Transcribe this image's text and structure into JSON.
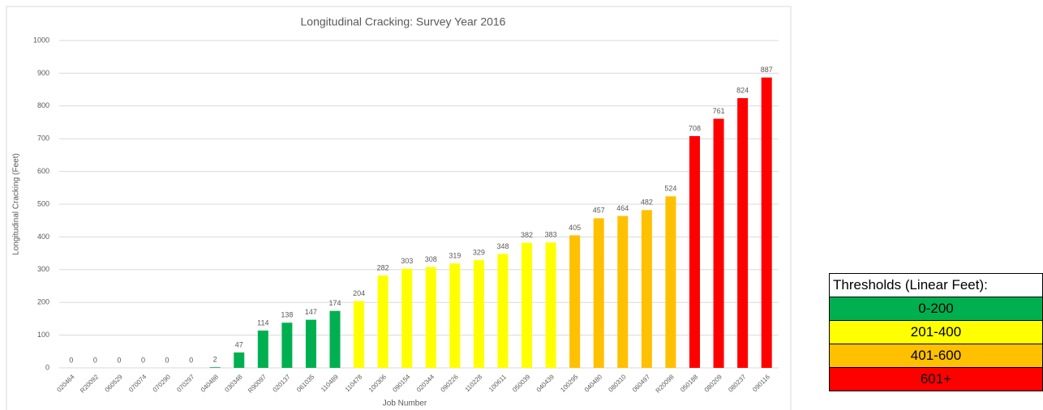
{
  "chart_data": {
    "type": "bar",
    "title": "Longitudinal Cracking: Survey Year 2016",
    "x_label": "Job Number",
    "y_label": "Longitudinal Cracking (Feet)",
    "categories": [
      "020464",
      "R20092",
      "060529",
      "070074",
      "070290",
      "070297",
      "040488",
      "030348",
      "R90097",
      "020137",
      "061035",
      "110489",
      "110478",
      "100306",
      "090154",
      "020344",
      "090226",
      "110228",
      "100611",
      "050039",
      "040439",
      "100295",
      "040480",
      "080310",
      "060497",
      "R20098",
      "050188",
      "080209",
      "080237",
      "090116"
    ],
    "values": [
      0,
      0,
      0,
      0,
      0,
      0,
      2,
      47,
      114,
      138,
      147,
      174,
      204,
      282,
      303,
      308,
      319,
      329,
      348,
      382,
      383,
      405,
      457,
      464,
      482,
      524,
      708,
      761,
      824,
      887
    ],
    "colors": [
      "#00b050",
      "#00b050",
      "#00b050",
      "#00b050",
      "#00b050",
      "#00b050",
      "#00b050",
      "#00b050",
      "#00b050",
      "#00b050",
      "#00b050",
      "#00b050",
      "#ffff00",
      "#ffff00",
      "#ffff00",
      "#ffff00",
      "#ffff00",
      "#ffff00",
      "#ffff00",
      "#ffff00",
      "#ffff00",
      "#ffc000",
      "#ffc000",
      "#ffc000",
      "#ffc000",
      "#ffc000",
      "#ff0000",
      "#ff0000",
      "#ff0000",
      "#ff0000"
    ],
    "ylim": [
      0,
      1000
    ],
    "yticks": [
      0,
      100,
      200,
      300,
      400,
      500,
      600,
      700,
      800,
      900,
      1000
    ],
    "grid": true
  },
  "thresholds": {
    "title": "Thresholds (Linear Feet):",
    "rows": [
      {
        "label": "0-200",
        "color": "#00b050"
      },
      {
        "label": "201-400",
        "color": "#ffff00"
      },
      {
        "label": "401-600",
        "color": "#ffc000"
      },
      {
        "label": "601+",
        "color": "#ff0000"
      }
    ]
  }
}
